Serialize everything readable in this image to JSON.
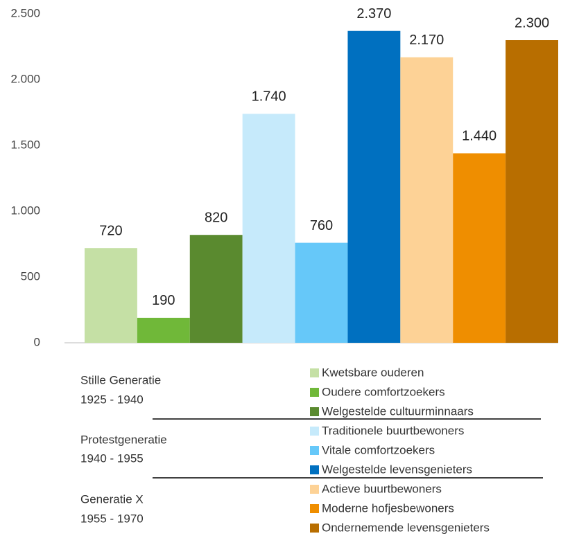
{
  "chart_data": {
    "type": "bar",
    "categories": [
      "Kwetsbare ouderen",
      "Oudere comfortzoekers",
      "Welgestelde cultuurminnaars",
      "Traditionele buurtbewoners",
      "Vitale comfortzoekers",
      "Welgestelde levensgenieters",
      "Actieve buurtbewoners",
      "Moderne hofjesbewoners",
      "Ondernemende levensgenieters"
    ],
    "values": [
      720,
      190,
      820,
      1740,
      760,
      2370,
      2170,
      1440,
      2300
    ],
    "value_labels": [
      "720",
      "190",
      "820",
      "1.740",
      "760",
      "2.370",
      "2.170",
      "1.440",
      "2.300"
    ],
    "colors": [
      "#c5e0a5",
      "#70b839",
      "#5a8a2f",
      "#c6eafb",
      "#66c8f9",
      "#0070c0",
      "#fdd296",
      "#ef8e00",
      "#b86e00"
    ],
    "ylim": [
      0,
      2500
    ],
    "yticks": [
      0,
      500,
      {
        "value": 1000,
        "label": "1.000"
      },
      {
        "value": 1500,
        "label": "1.500"
      },
      {
        "value": 2000,
        "label": "2.000"
      },
      {
        "value": 2500,
        "label": "2.500"
      }
    ],
    "grid": false,
    "groups": [
      {
        "name": "Stille Generatie",
        "period": "1925 - 1940"
      },
      {
        "name": "Protestgeneratie",
        "period": "1940 - 1955"
      },
      {
        "name": "Generatie X",
        "period": "1955 - 1970"
      }
    ]
  }
}
